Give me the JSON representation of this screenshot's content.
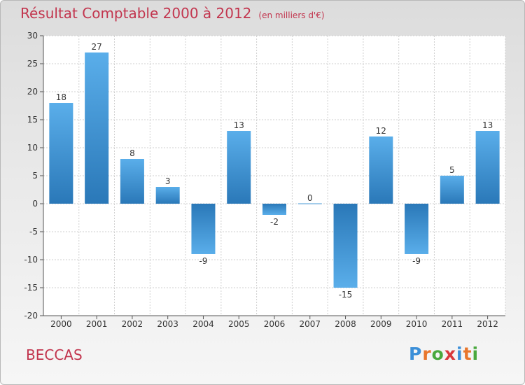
{
  "header": {
    "title": "Résultat Comptable 2000 à 2012",
    "subtitle": "(en milliers d'€)"
  },
  "footer": {
    "commune": "BECCAS",
    "brand": "Proxiti",
    "brand_colors": [
      "#3b8fd8",
      "#e8762c",
      "#49a83d",
      "#d8383b",
      "#3b8fd8",
      "#e8762c",
      "#49a83d"
    ]
  },
  "chart_data": {
    "type": "bar",
    "categories": [
      "2000",
      "2001",
      "2002",
      "2003",
      "2004",
      "2005",
      "2006",
      "2007",
      "2008",
      "2009",
      "2010",
      "2011",
      "2012"
    ],
    "values": [
      18,
      27,
      8,
      3,
      -9,
      13,
      -2,
      0,
      -15,
      12,
      -9,
      5,
      13
    ],
    "ylim": [
      -20,
      30
    ],
    "yticks": [
      30,
      25,
      20,
      15,
      10,
      5,
      0,
      -5,
      -10,
      -15,
      -20
    ],
    "grid": true,
    "bar_color_light": "#5aaeea",
    "bar_color_dark": "#2a78b8"
  }
}
